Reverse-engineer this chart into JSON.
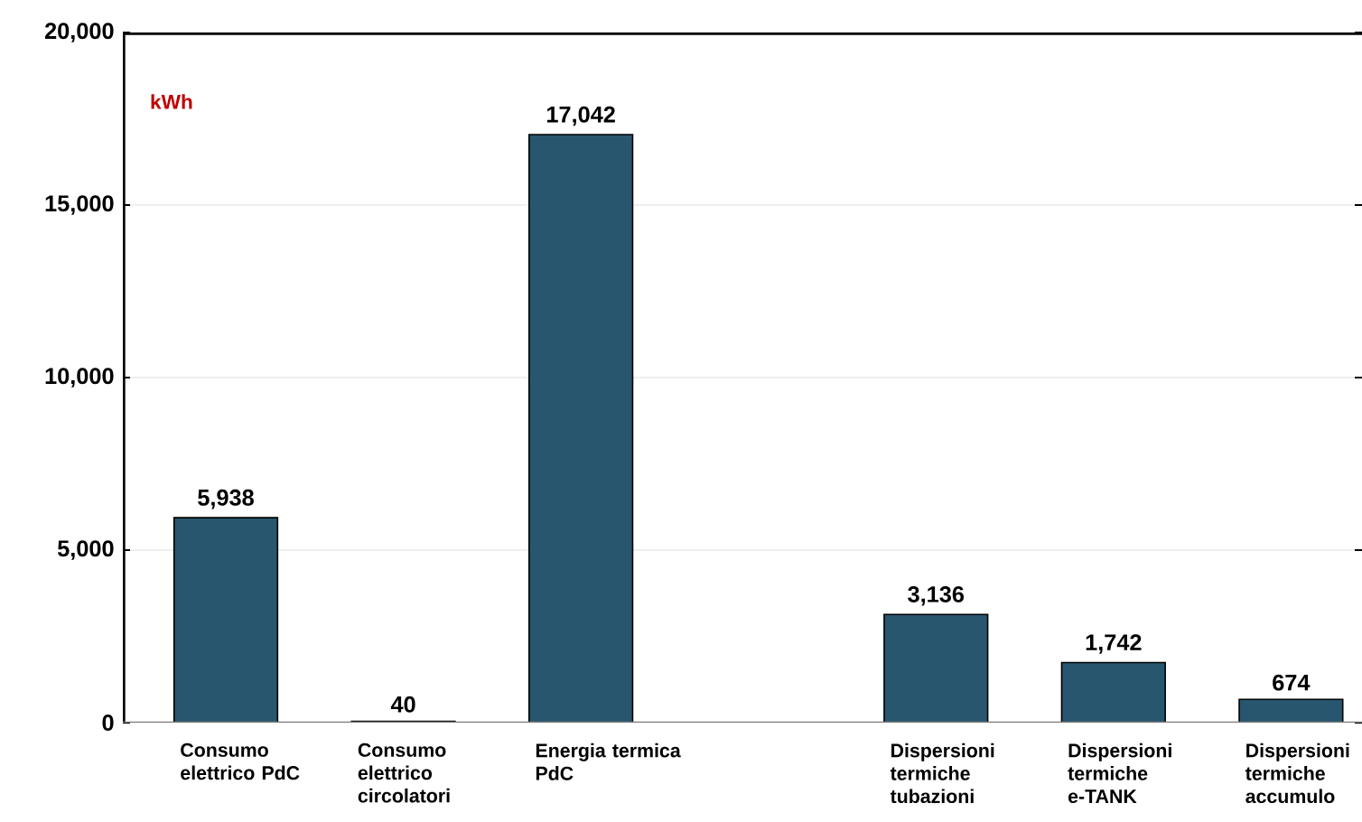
{
  "chart_data": {
    "type": "bar",
    "ylabel": "kWh",
    "categories": [
      "Consumo elettrico PdC",
      "Consumo elettrico circolatori",
      "Energia termica PdC",
      null,
      "Dispersioni termiche tubazioni",
      "Dispersioni termiche e-TANK",
      "Dispersioni termiche accumulo"
    ],
    "values": [
      5938,
      40,
      17042,
      null,
      3136,
      1742,
      674
    ],
    "value_labels": [
      "5,938",
      "40",
      "17,042",
      null,
      "3,136",
      "1,742",
      "674"
    ],
    "color": "#27566e",
    "ylim": [
      0,
      20000
    ],
    "yticks": [
      {
        "value": 0,
        "label": "0"
      },
      {
        "value": 5000,
        "label": "5,000"
      },
      {
        "value": 10000,
        "label": "10,000"
      },
      {
        "value": 15000,
        "label": "15,000"
      },
      {
        "value": 20000,
        "label": "20,000"
      }
    ],
    "grid": "y"
  }
}
